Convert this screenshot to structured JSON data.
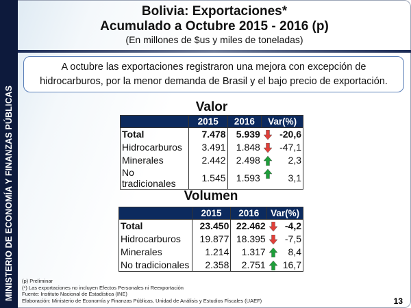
{
  "sidebar": {
    "text": "MINISTERIO DE ECONOMÍA Y FINANZAS PÚBLICAS"
  },
  "header": {
    "title1": "Bolivia: Exportaciones*",
    "title2": "Acumulado a Octubre 2015 - 2016 (p)",
    "subtitle": "(En millones de $us y miles de toneladas)"
  },
  "callout": {
    "line1": "A octubre las exportaciones registraron una mejora con excepción de",
    "line2": "hidrocarburos, por la menor demanda de Brasil y el bajo precio de exportación."
  },
  "colors": {
    "up": "#1e9e3a",
    "down": "#e0403a",
    "header": "#0c2a5e"
  },
  "valor": {
    "title": "Valor",
    "headers": [
      "",
      "2015",
      "2016",
      "Var(%)"
    ],
    "rows": [
      {
        "label": "Total",
        "y2015": "7.478",
        "y2016": "5.939",
        "trend": "down",
        "var": "-20,6"
      },
      {
        "label": "Hidrocarburos",
        "y2015": "3.491",
        "y2016": "1.848",
        "trend": "down",
        "var": "-47,1"
      },
      {
        "label": "Minerales",
        "y2015": "2.442",
        "y2016": "2.498",
        "trend": "up",
        "var": "2,3"
      },
      {
        "label": "No tradicionales",
        "y2015": "1.545",
        "y2016": "1.593",
        "trend": "up",
        "var": "3,1"
      }
    ]
  },
  "volumen": {
    "title": "Volumen",
    "headers": [
      "",
      "2015",
      "2016",
      "Var(%)"
    ],
    "rows": [
      {
        "label": "Total",
        "y2015": "23.450",
        "y2016": "22.462",
        "trend": "down",
        "var": "-4,2"
      },
      {
        "label": "Hidrocarburos",
        "y2015": "19.877",
        "y2016": "18.395",
        "trend": "down",
        "var": "-7,5"
      },
      {
        "label": "Minerales",
        "y2015": "1.214",
        "y2016": "1.317",
        "trend": "up",
        "var": "8,4"
      },
      {
        "label": "No tradicionales",
        "y2015": "2.358",
        "y2016": "2.751",
        "trend": "up",
        "var": "16,7"
      }
    ]
  },
  "footnotes": [
    "(p) Preliminar",
    "(*) Las exportaciones no incluyen Efectos Personales ni Reexportación",
    "Fuente: Instituto Nacional de Estadística (INE)",
    "Elaboración: Ministerio de Economía y Finanzas Públicas, Unidad de Análisis y Estudios Fiscales (UAEF)"
  ],
  "page_number": "13"
}
